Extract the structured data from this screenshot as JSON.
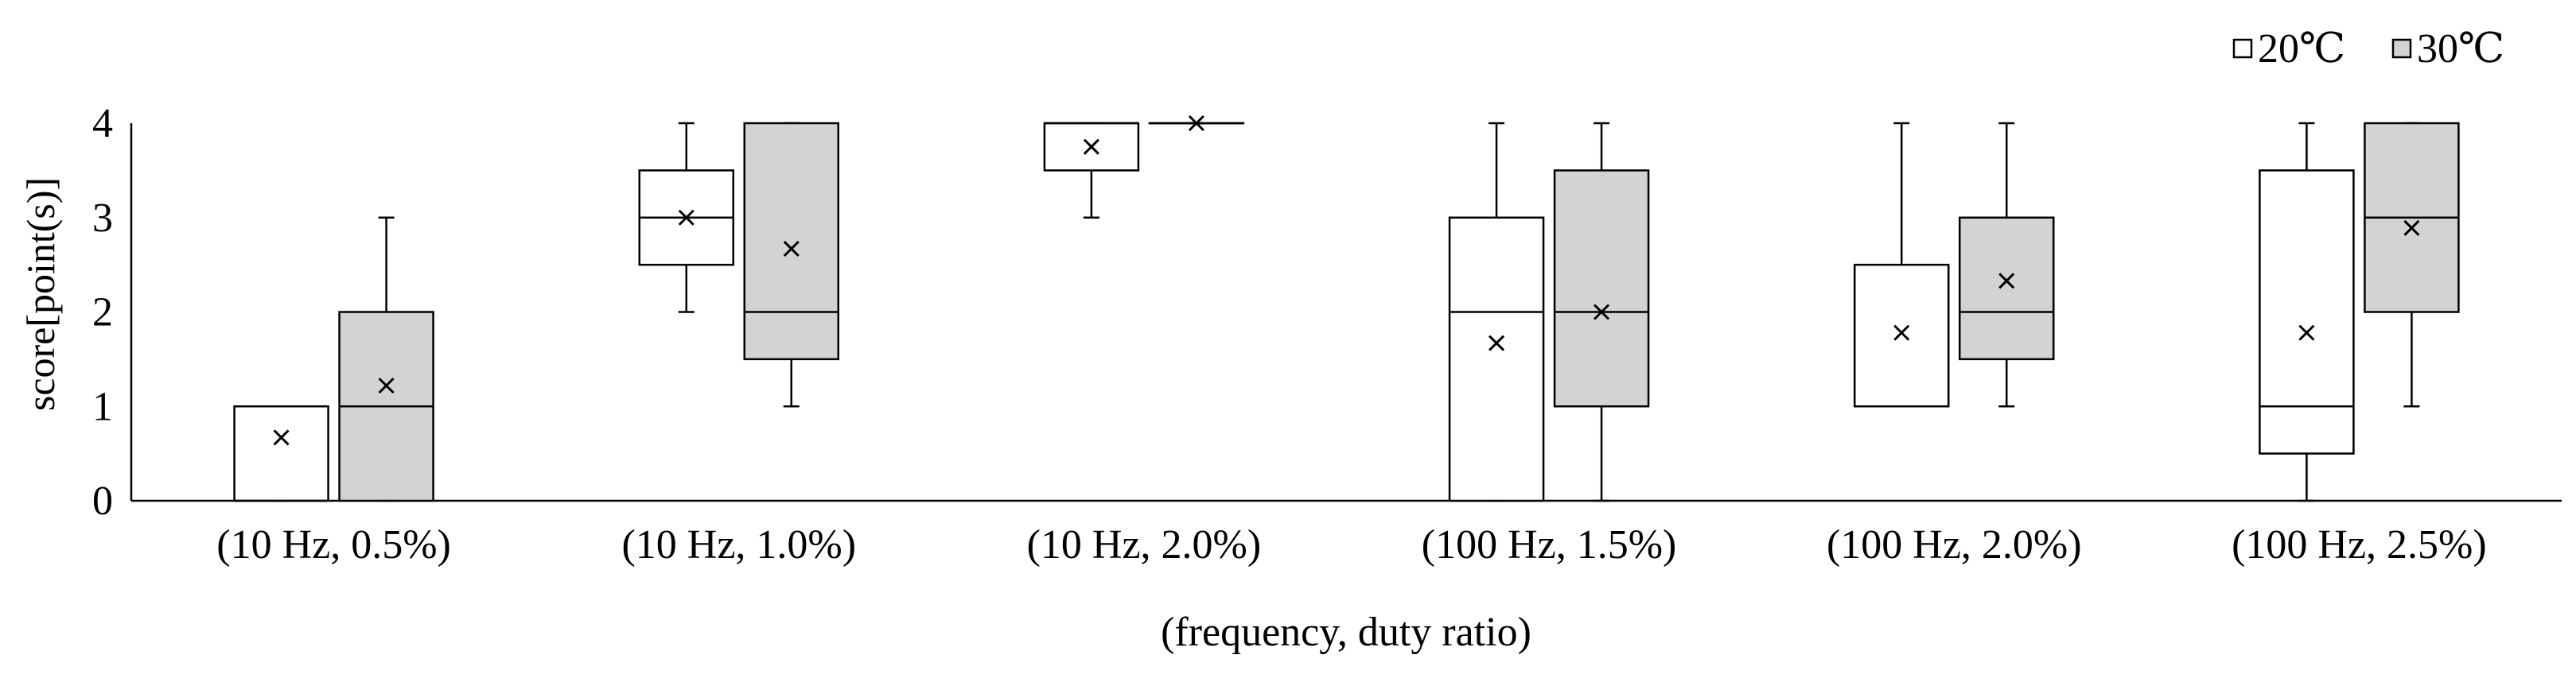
{
  "chart_data": {
    "type": "box",
    "categories": [
      "(10 Hz, 0.5%)",
      "(10 Hz, 1.0%)",
      "(10 Hz, 2.0%)",
      "(100 Hz, 1.5%)",
      "(100 Hz, 2.0%)",
      "(100 Hz, 2.5%)"
    ],
    "xlabel": "(frequency, duty ratio)",
    "ylabel": "score[point(s)]",
    "ylim": [
      0,
      4
    ],
    "yticks": [
      "0",
      "1",
      "2",
      "3",
      "4"
    ],
    "legend_position": "top-right",
    "grid": false,
    "series": [
      {
        "name": "20℃",
        "color": "#ffffff",
        "boxes": [
          {
            "min": 0,
            "q1": 0,
            "median": 0,
            "q3": 1,
            "max": 1,
            "mean": 0.67
          },
          {
            "min": 2,
            "q1": 2.5,
            "median": 3,
            "q3": 3.5,
            "max": 4,
            "mean": 3.0
          },
          {
            "min": 3,
            "q1": 3.5,
            "median": 4,
            "q3": 4,
            "max": 4,
            "mean": 3.75
          },
          {
            "min": 0,
            "q1": 0,
            "median": 2,
            "q3": 3,
            "max": 4,
            "mean": 1.67
          },
          {
            "min": 1,
            "q1": 1,
            "median": 1,
            "q3": 2.5,
            "max": 4,
            "mean": 1.78
          },
          {
            "min": 0,
            "q1": 0.5,
            "median": 1,
            "q3": 3.5,
            "max": 4,
            "mean": 1.78
          }
        ]
      },
      {
        "name": "30℃",
        "color": "#d3d3d3",
        "boxes": [
          {
            "min": 0,
            "q1": 0,
            "median": 1,
            "q3": 2,
            "max": 3,
            "mean": 1.22
          },
          {
            "min": 1,
            "q1": 1.5,
            "median": 2,
            "q3": 4,
            "max": 4,
            "mean": 2.67
          },
          {
            "min": 4,
            "q1": 4,
            "median": 4,
            "q3": 4,
            "max": 4,
            "mean": 4.0
          },
          {
            "min": 0,
            "q1": 1,
            "median": 2,
            "q3": 3.5,
            "max": 4,
            "mean": 2.0
          },
          {
            "min": 1,
            "q1": 1.5,
            "median": 2,
            "q3": 3,
            "max": 4,
            "mean": 2.33
          },
          {
            "min": 1,
            "q1": 2,
            "median": 3,
            "q3": 4,
            "max": 4,
            "mean": 2.89
          }
        ]
      }
    ]
  }
}
